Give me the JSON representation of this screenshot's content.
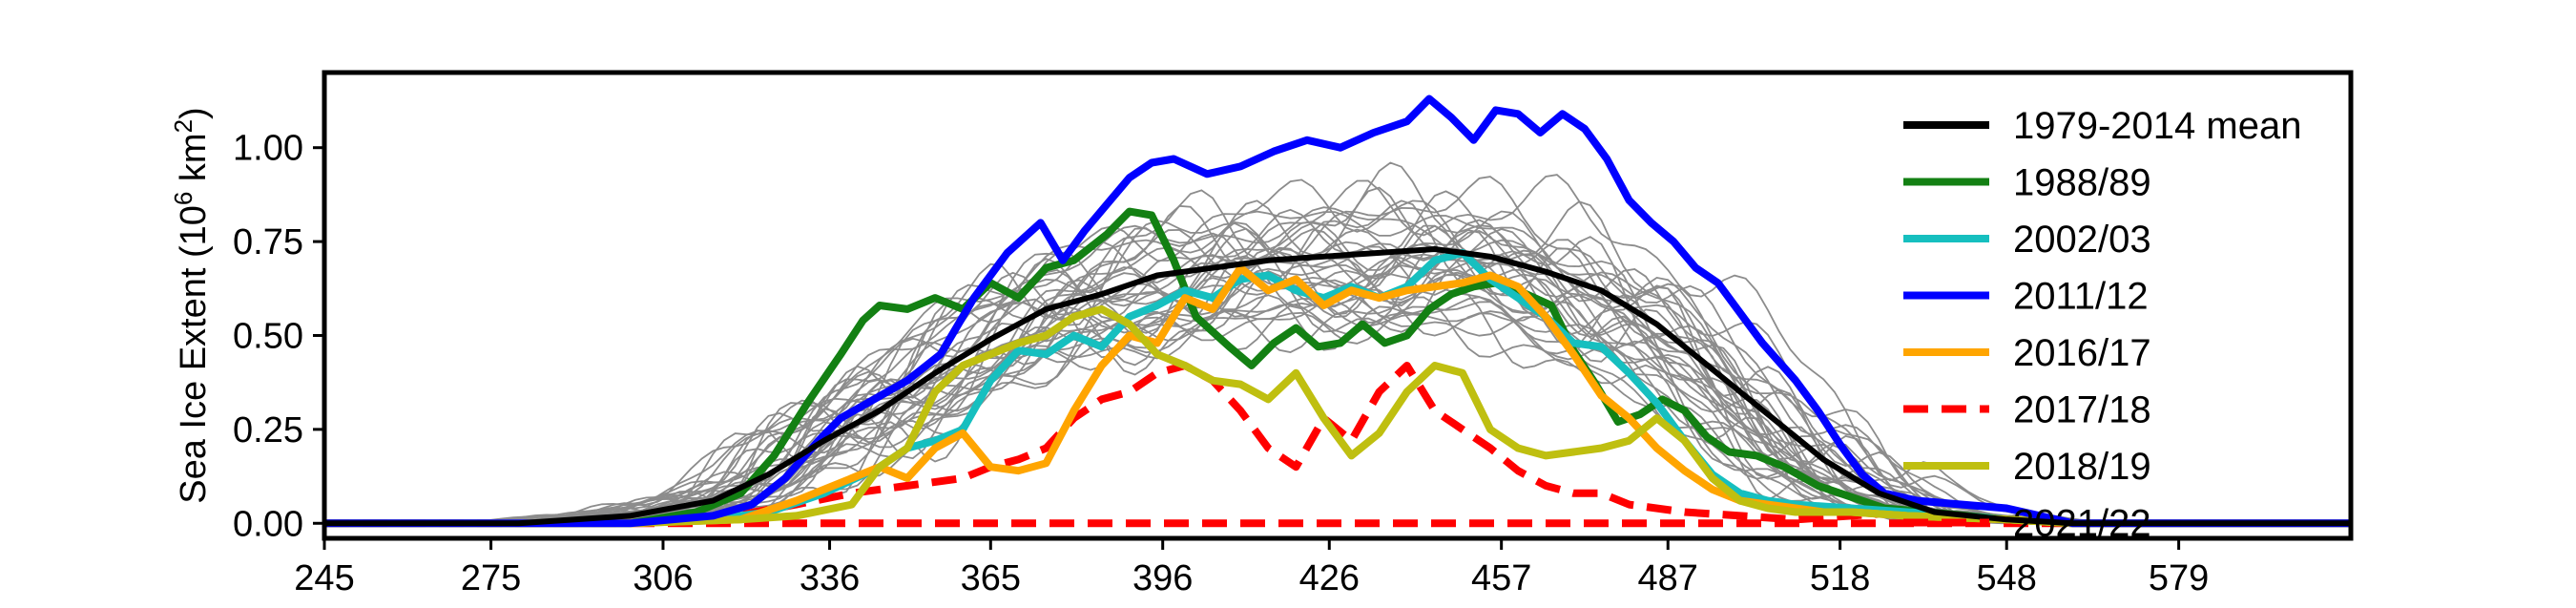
{
  "chart_data": {
    "type": "line",
    "title": "",
    "xlabel": "",
    "ylabel": "Sea Ice Extent (10",
    "ylabel_sup": "6",
    "ylabel_unit": " km",
    "ylabel_unit_sup": "2",
    "ylabel_close": ")",
    "xlim": [
      245,
      610
    ],
    "ylim": [
      -0.04,
      1.2
    ],
    "x_ticks": [
      245,
      275,
      306,
      336,
      365,
      396,
      426,
      457,
      487,
      518,
      548,
      579
    ],
    "x_tick_labels": [
      "245",
      "275",
      "306",
      "336",
      "365",
      "396",
      "426",
      "457",
      "487",
      "518",
      "548",
      "579"
    ],
    "y_ticks": [
      0.0,
      0.25,
      0.5,
      0.75,
      1.0
    ],
    "y_tick_labels": [
      "0.00",
      "0.25",
      "0.50",
      "0.75",
      "1.00"
    ],
    "grid": false,
    "legend_position": "top-right",
    "background_series_color": "#8c8c8c",
    "series": [
      {
        "name": "1979-2014 mean",
        "color": "#000000",
        "dash": "solid",
        "x": [
          245,
          280,
          300,
          315,
          325,
          335,
          345,
          355,
          365,
          375,
          385,
          395,
          405,
          415,
          425,
          435,
          445,
          455,
          465,
          475,
          485,
          495,
          505,
          515,
          525,
          535,
          548,
          560,
          610
        ],
        "y": [
          0,
          0,
          0.02,
          0.06,
          0.13,
          0.22,
          0.3,
          0.4,
          0.49,
          0.57,
          0.61,
          0.66,
          0.68,
          0.7,
          0.71,
          0.72,
          0.73,
          0.71,
          0.67,
          0.62,
          0.53,
          0.41,
          0.29,
          0.17,
          0.08,
          0.03,
          0.01,
          0,
          0
        ]
      },
      {
        "name": "1988/89",
        "color": "#138013",
        "dash": "solid",
        "x": [
          245,
          300,
          312,
          320,
          326,
          332,
          338,
          342,
          345,
          350,
          355,
          360,
          365,
          370,
          375,
          380,
          386,
          390,
          394,
          398,
          402,
          408,
          412,
          416,
          420,
          424,
          428,
          432,
          436,
          440,
          444,
          448,
          452,
          456,
          460,
          466,
          470,
          474,
          478,
          482,
          486,
          490,
          494,
          498,
          503,
          508,
          514,
          520,
          526,
          534,
          548,
          560,
          610
        ],
        "y": [
          0,
          0,
          0.03,
          0.08,
          0.18,
          0.32,
          0.45,
          0.54,
          0.58,
          0.57,
          0.6,
          0.57,
          0.64,
          0.6,
          0.68,
          0.7,
          0.77,
          0.83,
          0.82,
          0.7,
          0.55,
          0.47,
          0.42,
          0.48,
          0.52,
          0.47,
          0.48,
          0.53,
          0.48,
          0.5,
          0.57,
          0.61,
          0.63,
          0.64,
          0.62,
          0.58,
          0.46,
          0.37,
          0.27,
          0.29,
          0.33,
          0.3,
          0.23,
          0.19,
          0.18,
          0.15,
          0.1,
          0.07,
          0.04,
          0.03,
          0.01,
          0,
          0
        ]
      },
      {
        "name": "2002/03",
        "color": "#16bfbf",
        "dash": "solid",
        "x": [
          245,
          300,
          315,
          325,
          335,
          345,
          350,
          355,
          360,
          365,
          370,
          375,
          380,
          385,
          390,
          395,
          400,
          405,
          410,
          415,
          420,
          425,
          430,
          435,
          440,
          445,
          450,
          455,
          460,
          465,
          470,
          475,
          480,
          485,
          490,
          495,
          500,
          505,
          510,
          520,
          530,
          548,
          560,
          610
        ],
        "y": [
          0,
          0,
          0.01,
          0.03,
          0.08,
          0.15,
          0.2,
          0.22,
          0.25,
          0.38,
          0.46,
          0.45,
          0.5,
          0.47,
          0.55,
          0.58,
          0.62,
          0.6,
          0.65,
          0.66,
          0.62,
          0.6,
          0.63,
          0.6,
          0.63,
          0.7,
          0.72,
          0.65,
          0.6,
          0.55,
          0.48,
          0.47,
          0.4,
          0.32,
          0.22,
          0.13,
          0.08,
          0.06,
          0.05,
          0.04,
          0.03,
          0.01,
          0,
          0
        ]
      },
      {
        "name": "2011/12",
        "color": "#0000ff",
        "dash": "solid",
        "x": [
          245,
          300,
          315,
          322,
          328,
          334,
          338,
          344,
          350,
          356,
          362,
          368,
          374,
          378,
          382,
          386,
          390,
          394,
          398,
          404,
          410,
          416,
          422,
          428,
          434,
          440,
          444,
          448,
          452,
          456,
          460,
          464,
          468,
          472,
          476,
          480,
          484,
          488,
          492,
          496,
          500,
          504,
          510,
          514,
          518,
          522,
          526,
          532,
          540,
          548,
          560,
          610
        ],
        "y": [
          0,
          0,
          0.02,
          0.05,
          0.12,
          0.22,
          0.28,
          0.33,
          0.38,
          0.45,
          0.6,
          0.72,
          0.8,
          0.7,
          0.78,
          0.85,
          0.92,
          0.96,
          0.97,
          0.93,
          0.95,
          0.99,
          1.02,
          1.0,
          1.04,
          1.07,
          1.13,
          1.08,
          1.02,
          1.1,
          1.09,
          1.04,
          1.09,
          1.05,
          0.97,
          0.86,
          0.8,
          0.75,
          0.68,
          0.64,
          0.56,
          0.48,
          0.38,
          0.3,
          0.21,
          0.13,
          0.08,
          0.06,
          0.05,
          0.04,
          0,
          0
        ]
      },
      {
        "name": "2016/17",
        "color": "#ffa500",
        "dash": "solid",
        "x": [
          245,
          300,
          320,
          330,
          340,
          345,
          350,
          355,
          360,
          365,
          370,
          375,
          380,
          385,
          390,
          395,
          400,
          405,
          410,
          415,
          420,
          425,
          430,
          435,
          440,
          445,
          450,
          455,
          460,
          465,
          470,
          475,
          480,
          485,
          490,
          495,
          500,
          505,
          510,
          515,
          520,
          530,
          548,
          560,
          610
        ],
        "y": [
          0,
          0,
          0.01,
          0.06,
          0.12,
          0.15,
          0.12,
          0.2,
          0.24,
          0.15,
          0.14,
          0.16,
          0.3,
          0.42,
          0.5,
          0.48,
          0.6,
          0.57,
          0.68,
          0.62,
          0.65,
          0.58,
          0.62,
          0.6,
          0.62,
          0.63,
          0.64,
          0.66,
          0.63,
          0.55,
          0.45,
          0.34,
          0.28,
          0.2,
          0.14,
          0.09,
          0.06,
          0.05,
          0.04,
          0.03,
          0.03,
          0.02,
          0.01,
          0,
          0
        ]
      },
      {
        "name": "2017/18",
        "color": "#ff0000",
        "dash": "dashed",
        "x": [
          245,
          300,
          315,
          330,
          340,
          350,
          360,
          365,
          370,
          375,
          380,
          385,
          390,
          395,
          400,
          405,
          410,
          415,
          420,
          425,
          430,
          435,
          440,
          445,
          450,
          455,
          460,
          465,
          470,
          475,
          480,
          490,
          500,
          510,
          520,
          530,
          548,
          560,
          610
        ],
        "y": [
          0,
          0,
          0.01,
          0.05,
          0.08,
          0.1,
          0.12,
          0.15,
          0.17,
          0.2,
          0.28,
          0.33,
          0.35,
          0.4,
          0.42,
          0.38,
          0.3,
          0.2,
          0.15,
          0.28,
          0.22,
          0.35,
          0.42,
          0.3,
          0.25,
          0.2,
          0.14,
          0.1,
          0.08,
          0.08,
          0.05,
          0.03,
          0.02,
          0.01,
          0.02,
          0.03,
          0.01,
          0,
          0
        ]
      },
      {
        "name": "2018/19",
        "color": "#bfbf10",
        "dash": "solid",
        "x": [
          245,
          300,
          320,
          330,
          340,
          345,
          350,
          355,
          360,
          365,
          370,
          375,
          380,
          385,
          390,
          395,
          400,
          405,
          410,
          415,
          420,
          425,
          430,
          435,
          440,
          445,
          450,
          455,
          460,
          465,
          470,
          475,
          480,
          485,
          490,
          495,
          500,
          505,
          510,
          515,
          520,
          530,
          548,
          560,
          610
        ],
        "y": [
          0,
          0,
          0.01,
          0.02,
          0.05,
          0.15,
          0.2,
          0.35,
          0.42,
          0.45,
          0.48,
          0.5,
          0.55,
          0.57,
          0.53,
          0.45,
          0.42,
          0.38,
          0.37,
          0.33,
          0.4,
          0.28,
          0.18,
          0.24,
          0.35,
          0.42,
          0.4,
          0.25,
          0.2,
          0.18,
          0.19,
          0.2,
          0.22,
          0.28,
          0.22,
          0.12,
          0.06,
          0.04,
          0.03,
          0.03,
          0.03,
          0.02,
          0.01,
          0,
          0
        ]
      },
      {
        "name": "2021/22",
        "color": "#ff0000",
        "dash": "dashed",
        "x": [
          245,
          280,
          300,
          315,
          330,
          345,
          355,
          365,
          375,
          385,
          395,
          405,
          415,
          425,
          435,
          445,
          455,
          465,
          475,
          485,
          495,
          505,
          515,
          525,
          535,
          548,
          560,
          610
        ],
        "y": [
          0,
          0,
          0,
          0,
          0,
          0,
          0,
          0,
          0,
          0,
          0,
          0,
          0,
          0,
          0,
          0,
          0,
          0,
          0,
          0,
          0,
          0,
          0,
          0,
          0,
          0,
          0,
          0
        ]
      }
    ]
  }
}
